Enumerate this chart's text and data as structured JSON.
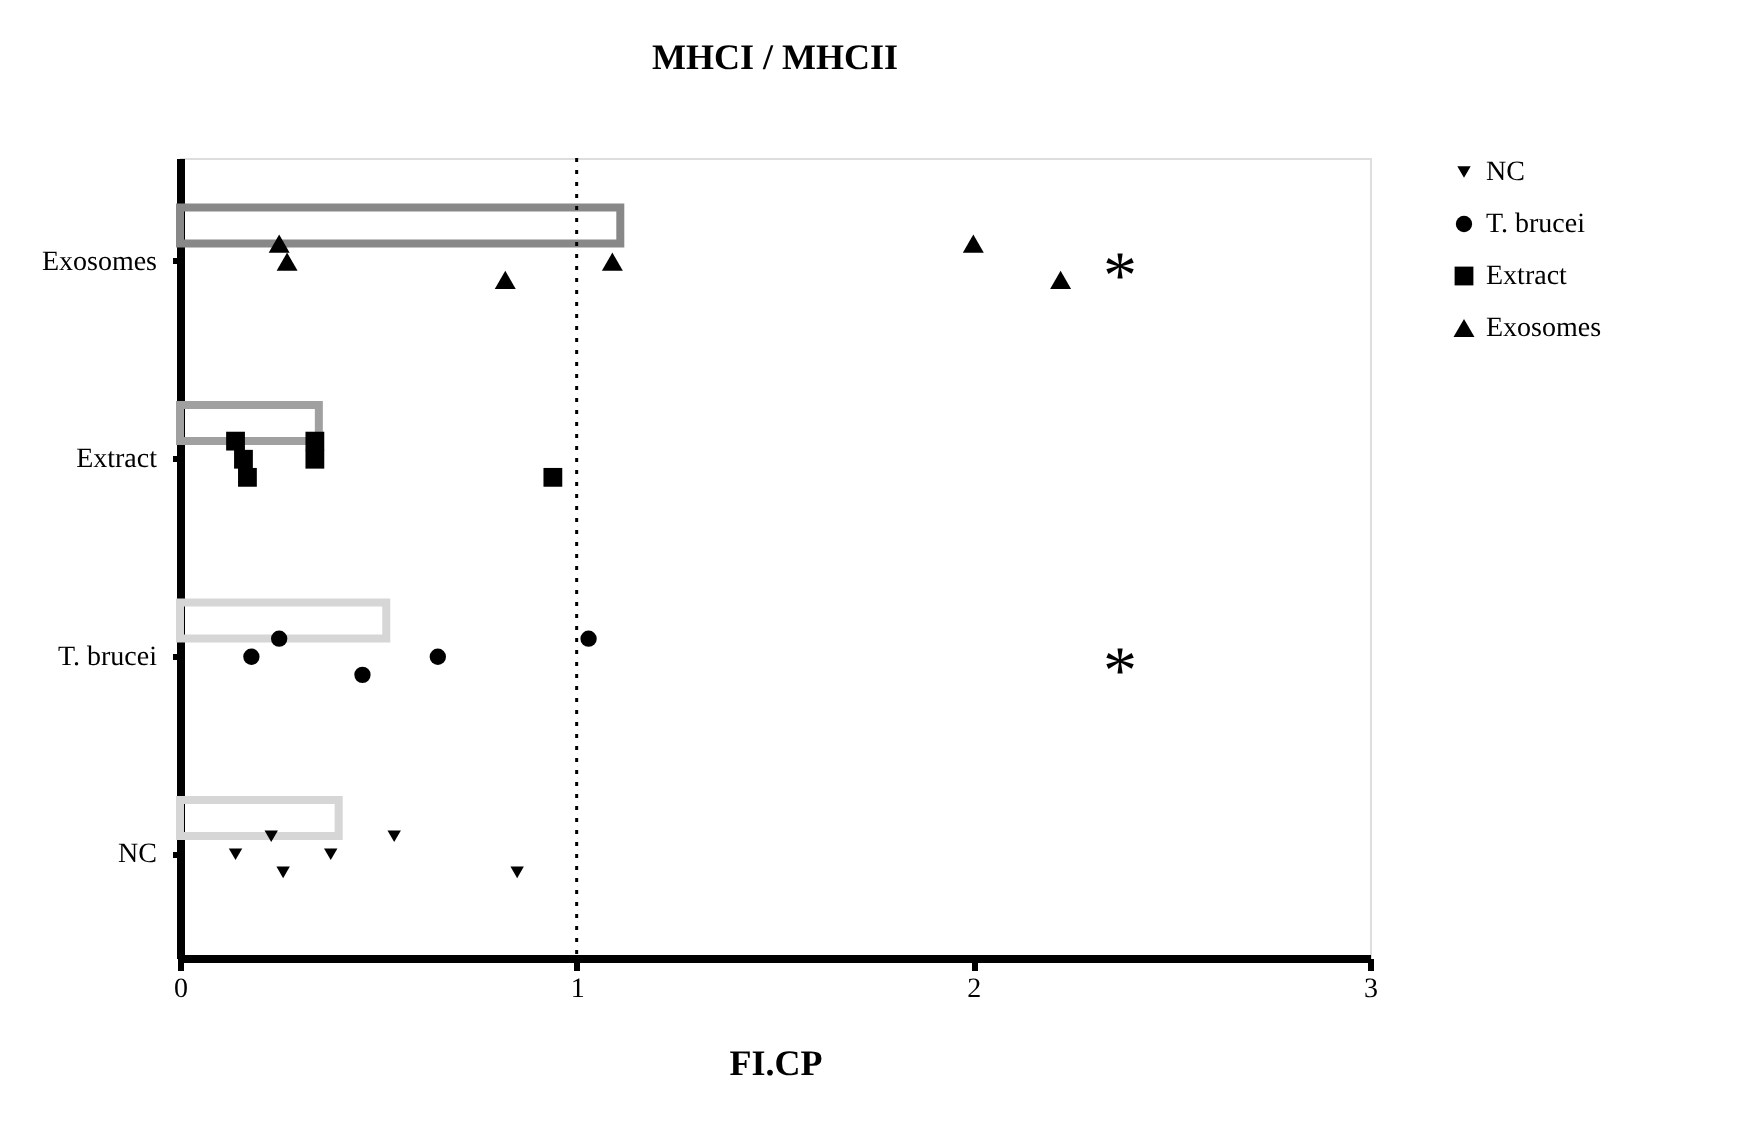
{
  "chart_data": {
    "type": "bar",
    "orientation": "horizontal",
    "title": "MHCI / MHCII",
    "xlabel": "FI.CP",
    "categories": [
      "Exosomes",
      "Extract",
      "T. brucei",
      "NC"
    ],
    "series": [
      {
        "colors": [
          "#888888",
          "#a0a0a0",
          "#d6d6d6",
          "#d6d6d6"
        ],
        "values": [
          1.11,
          0.35,
          0.52,
          0.4
        ]
      },
      {
        "type": "scatter",
        "name": "NC",
        "color": "#000000",
        "marker": "triangle-down",
        "x": [
          "NC",
          "NC",
          "NC",
          "NC",
          "NC",
          "NC"
        ],
        "values": [
          0.14,
          0.23,
          0.26,
          0.38,
          0.54,
          0.85
        ]
      },
      {
        "type": "scatter",
        "name": "T. brucei",
        "color": "#000000",
        "marker": "circle",
        "x": [
          "T. brucei",
          "T. brucei",
          "T. brucei",
          "T. brucei",
          "T. brucei"
        ],
        "values": [
          0.18,
          0.25,
          0.46,
          0.65,
          1.03
        ]
      },
      {
        "type": "scatter",
        "name": "Extract",
        "color": "#000000",
        "marker": "square",
        "x": [
          "Extract",
          "Extract",
          "Extract",
          "Extract",
          "Extract",
          "Extract"
        ],
        "values": [
          0.16,
          0.14,
          0.17,
          0.34,
          0.34,
          0.94
        ]
      },
      {
        "type": "scatter",
        "name": "Exosomes",
        "color": "#000000",
        "marker": "triangle",
        "x": [
          "Exosomes",
          "Exosomes",
          "Exosomes",
          "Exosomes",
          "Exosomes",
          "Exosomes"
        ],
        "values": [
          0.27,
          0.25,
          0.82,
          1.09,
          2.0,
          2.22
        ]
      }
    ],
    "xlim": [
      0,
      3
    ],
    "xticks": [
      0,
      1,
      2,
      3
    ],
    "ref_lines": [
      {
        "axis": "x",
        "value": 1,
        "line_style": "dotted",
        "color": "#000000"
      }
    ],
    "annotations": [
      "*",
      "*"
    ],
    "legend": "top right",
    "grid": false
  }
}
